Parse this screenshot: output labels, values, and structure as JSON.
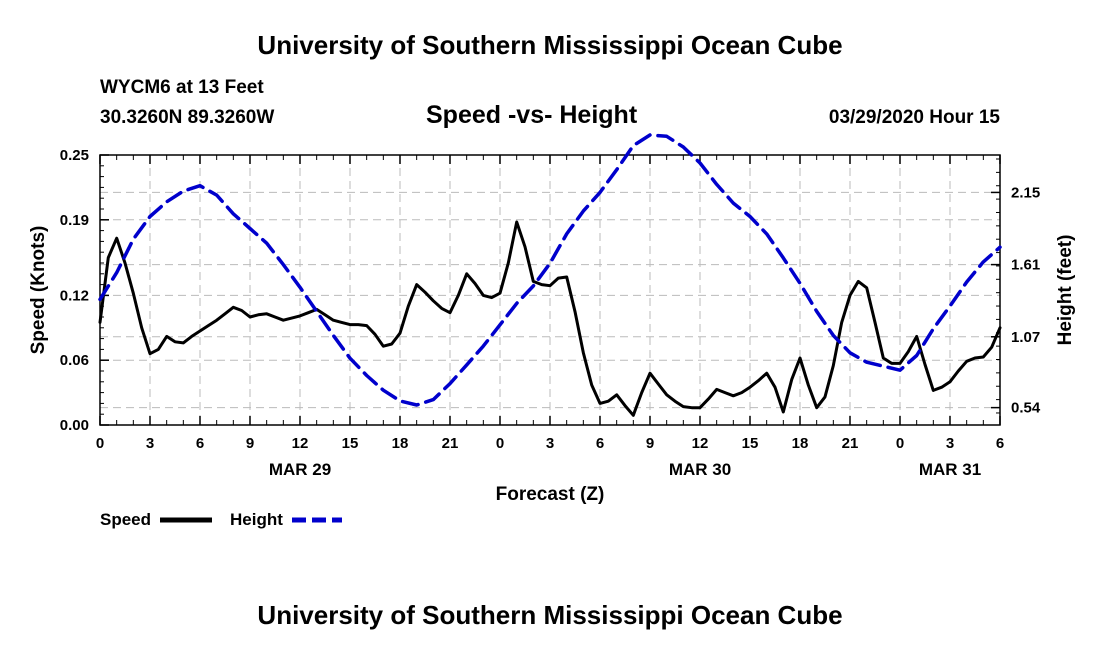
{
  "header": {
    "title": "University of Southern Mississippi Ocean Cube",
    "station": "WYCM6 at 13 Feet",
    "location": "30.3260N 89.3260W",
    "chart_title": "Speed -vs- Height",
    "datetime": "03/29/2020 Hour 15"
  },
  "footer": {
    "title": "University of Southern Mississippi Ocean Cube"
  },
  "colors": {
    "speed": "#000000",
    "height": "#0000cc",
    "grid": "#bbbbbb"
  },
  "chart_data": {
    "type": "line",
    "title": "Speed -vs- Height",
    "xlabel": "Forecast (Z)",
    "ylabel": "Speed (Knots)",
    "y2label": "Height (feet)",
    "grid": true,
    "xlim": [
      0,
      54
    ],
    "ylim": [
      0,
      0.25
    ],
    "y2lim": [
      0.41,
      2.43
    ],
    "x_ticks": [
      0,
      3,
      6,
      9,
      12,
      15,
      18,
      21,
      24,
      27,
      30,
      33,
      36,
      39,
      42,
      45,
      48,
      51,
      54
    ],
    "x_tick_labels": [
      "0",
      "3",
      "6",
      "9",
      "12",
      "15",
      "18",
      "21",
      "0",
      "3",
      "6",
      "9",
      "12",
      "15",
      "18",
      "21",
      "0",
      "3",
      "6"
    ],
    "y_ticks": [
      0,
      0.06,
      0.12,
      0.19,
      0.25
    ],
    "y_tick_labels": [
      "0.00",
      "0.06",
      "0.12",
      "0.19",
      "0.25"
    ],
    "y2_ticks": [
      0.54,
      1.07,
      1.61,
      2.15
    ],
    "y2_tick_labels": [
      "0.54",
      "1.07",
      "1.61",
      "2.15"
    ],
    "date_labels": [
      {
        "text": "MAR 29",
        "x": 12
      },
      {
        "text": "MAR 30",
        "x": 36
      },
      {
        "text": "MAR 31",
        "x": 51
      }
    ],
    "legend": [
      "Speed",
      "Height"
    ],
    "legend_position": "bottom-left",
    "series": [
      {
        "name": "Speed",
        "axis": "left",
        "style": "solid",
        "x": [
          0,
          0.5,
          1,
          1.5,
          2,
          2.5,
          3,
          3.5,
          4,
          4.5,
          5,
          5.5,
          6,
          6.5,
          7,
          7.5,
          8,
          8.5,
          9,
          9.5,
          10,
          10.5,
          11,
          11.5,
          12,
          12.5,
          13,
          13.5,
          14,
          14.5,
          15,
          15.5,
          16,
          16.5,
          17,
          17.5,
          18,
          18.5,
          19,
          19.5,
          20,
          20.5,
          21,
          21.5,
          22,
          22.5,
          23,
          23.5,
          24,
          24.5,
          25,
          25.5,
          26,
          26.5,
          27,
          27.5,
          28,
          28.5,
          29,
          29.5,
          30,
          30.5,
          31,
          31.5,
          32,
          32.5,
          33,
          33.5,
          34,
          34.5,
          35,
          35.5,
          36,
          36.5,
          37,
          37.5,
          38,
          38.5,
          39,
          39.5,
          40,
          40.5,
          41,
          41.5,
          42,
          42.5,
          43,
          43.5,
          44,
          44.5,
          45,
          45.5,
          46,
          46.5,
          47,
          47.5,
          48,
          48.5,
          49,
          49.5,
          50,
          50.5,
          51,
          51.5,
          52,
          52.5,
          53,
          53.5,
          54
        ],
        "values": [
          0.095,
          0.155,
          0.173,
          0.15,
          0.122,
          0.09,
          0.066,
          0.07,
          0.082,
          0.077,
          0.076,
          0.082,
          0.087,
          0.092,
          0.097,
          0.103,
          0.109,
          0.106,
          0.1,
          0.102,
          0.103,
          0.1,
          0.097,
          0.099,
          0.101,
          0.104,
          0.107,
          0.102,
          0.097,
          0.095,
          0.093,
          0.093,
          0.092,
          0.084,
          0.073,
          0.075,
          0.085,
          0.11,
          0.13,
          0.123,
          0.115,
          0.108,
          0.104,
          0.12,
          0.14,
          0.131,
          0.12,
          0.118,
          0.122,
          0.15,
          0.188,
          0.165,
          0.133,
          0.13,
          0.129,
          0.136,
          0.137,
          0.105,
          0.067,
          0.037,
          0.02,
          0.022,
          0.028,
          0.018,
          0.009,
          0.03,
          0.048,
          0.038,
          0.028,
          0.022,
          0.017,
          0.016,
          0.016,
          0.024,
          0.033,
          0.03,
          0.027,
          0.03,
          0.035,
          0.041,
          0.048,
          0.035,
          0.012,
          0.042,
          0.062,
          0.037,
          0.016,
          0.026,
          0.055,
          0.095,
          0.12,
          0.133,
          0.127,
          0.095,
          0.062,
          0.057,
          0.057,
          0.068,
          0.082,
          0.056,
          0.032,
          0.035,
          0.04,
          0.05,
          0.059,
          0.062,
          0.063,
          0.072,
          0.09
        ]
      },
      {
        "name": "Height",
        "axis": "right",
        "style": "dashed",
        "x": [
          0,
          1,
          2,
          3,
          4,
          5,
          6,
          7,
          8,
          9,
          10,
          11,
          12,
          13,
          14,
          15,
          16,
          17,
          18,
          19,
          20,
          21,
          22,
          23,
          24,
          25,
          26,
          27,
          28,
          29,
          30,
          31,
          32,
          33,
          34,
          35,
          36,
          37,
          38,
          39,
          40,
          41,
          42,
          43,
          44,
          45,
          46,
          47,
          48,
          49,
          50,
          51,
          52,
          53,
          54
        ],
        "values": [
          1.35,
          1.55,
          1.8,
          1.97,
          2.08,
          2.16,
          2.2,
          2.13,
          1.99,
          1.88,
          1.77,
          1.61,
          1.44,
          1.26,
          1.08,
          0.91,
          0.78,
          0.67,
          0.59,
          0.56,
          0.6,
          0.72,
          0.86,
          1,
          1.16,
          1.32,
          1.45,
          1.62,
          1.84,
          2.01,
          2.15,
          2.32,
          2.5,
          2.58,
          2.57,
          2.49,
          2.37,
          2.21,
          2.07,
          1.97,
          1.84,
          1.66,
          1.47,
          1.26,
          1.08,
          0.95,
          0.88,
          0.85,
          0.82,
          0.93,
          1.13,
          1.3,
          1.48,
          1.63,
          1.74
        ]
      }
    ]
  }
}
